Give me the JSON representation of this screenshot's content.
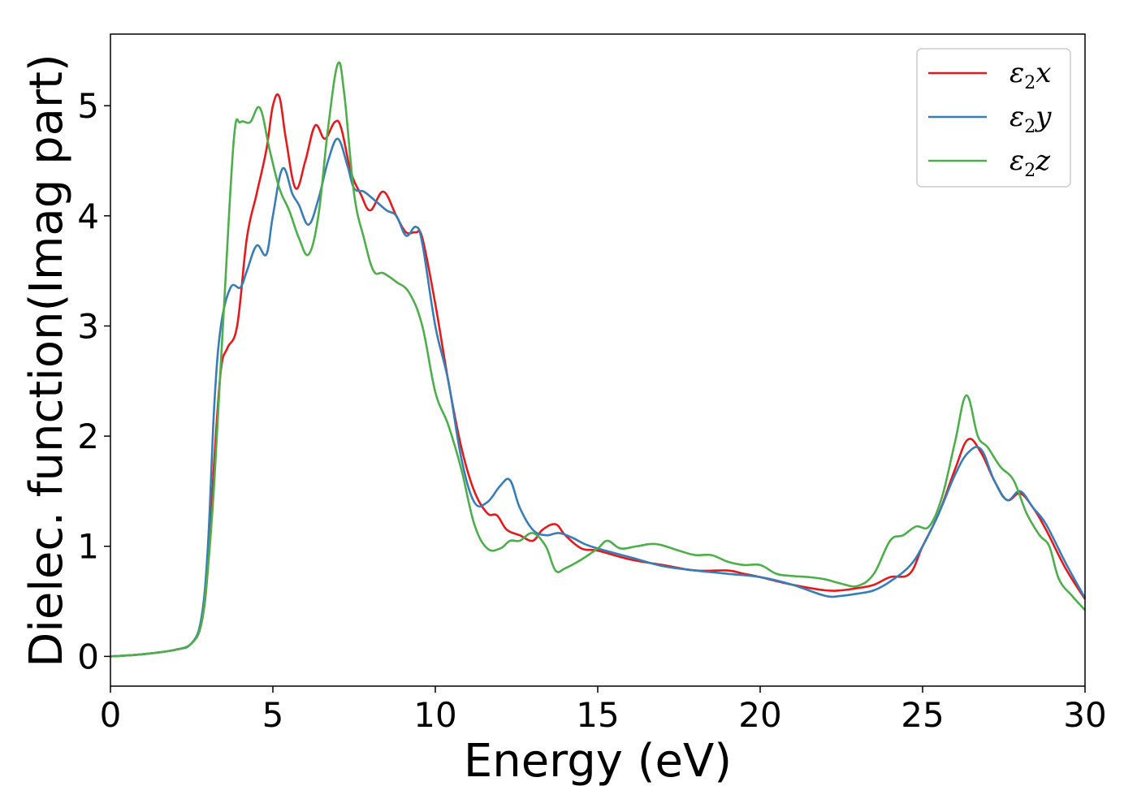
{
  "chart_data": {
    "type": "line",
    "title": "",
    "xlabel": "Energy (eV)",
    "ylabel": "Dielec. function(Imag part)",
    "xlim": [
      0,
      30
    ],
    "ylim": [
      -0.27,
      5.65
    ],
    "xticks": [
      "0",
      "5",
      "10",
      "15",
      "20",
      "25",
      "30"
    ],
    "yticks": [
      "0",
      "1",
      "2",
      "3",
      "4",
      "5"
    ],
    "grid": false,
    "legend_position": "top-right",
    "series": [
      {
        "name": "ε2x",
        "name_base": "ε",
        "name_sub": "2",
        "name_suffix": "x",
        "color": "#e41a1c",
        "points": [
          [
            0,
            0
          ],
          [
            1,
            0.02
          ],
          [
            2,
            0.06
          ],
          [
            2.5,
            0.12
          ],
          [
            2.8,
            0.3
          ],
          [
            3.0,
            0.8
          ],
          [
            3.2,
            1.8
          ],
          [
            3.4,
            2.6
          ],
          [
            3.6,
            2.8
          ],
          [
            3.9,
            3.0
          ],
          [
            4.2,
            3.8
          ],
          [
            4.5,
            4.2
          ],
          [
            4.8,
            4.6
          ],
          [
            5.0,
            5.0
          ],
          [
            5.2,
            5.08
          ],
          [
            5.4,
            4.7
          ],
          [
            5.7,
            4.25
          ],
          [
            6.0,
            4.5
          ],
          [
            6.3,
            4.82
          ],
          [
            6.6,
            4.7
          ],
          [
            6.9,
            4.85
          ],
          [
            7.1,
            4.8
          ],
          [
            7.4,
            4.4
          ],
          [
            7.7,
            4.2
          ],
          [
            8.0,
            4.05
          ],
          [
            8.4,
            4.22
          ],
          [
            8.8,
            4.0
          ],
          [
            9.1,
            3.85
          ],
          [
            9.4,
            3.85
          ],
          [
            9.6,
            3.8
          ],
          [
            10.0,
            3.2
          ],
          [
            10.4,
            2.5
          ],
          [
            10.8,
            1.9
          ],
          [
            11.2,
            1.5
          ],
          [
            11.6,
            1.3
          ],
          [
            11.9,
            1.28
          ],
          [
            12.2,
            1.15
          ],
          [
            12.6,
            1.1
          ],
          [
            13.0,
            1.05
          ],
          [
            13.3,
            1.15
          ],
          [
            13.7,
            1.2
          ],
          [
            14.0,
            1.1
          ],
          [
            14.5,
            0.98
          ],
          [
            15.0,
            0.96
          ],
          [
            16.0,
            0.88
          ],
          [
            17.0,
            0.83
          ],
          [
            18.0,
            0.78
          ],
          [
            19.0,
            0.78
          ],
          [
            19.5,
            0.75
          ],
          [
            20.0,
            0.72
          ],
          [
            21.0,
            0.65
          ],
          [
            22.0,
            0.6
          ],
          [
            22.5,
            0.6
          ],
          [
            23.0,
            0.62
          ],
          [
            23.5,
            0.65
          ],
          [
            24.0,
            0.72
          ],
          [
            24.6,
            0.75
          ],
          [
            25.0,
            1.0
          ],
          [
            25.5,
            1.3
          ],
          [
            26.0,
            1.7
          ],
          [
            26.4,
            1.97
          ],
          [
            26.8,
            1.85
          ],
          [
            27.2,
            1.6
          ],
          [
            27.6,
            1.42
          ],
          [
            28.0,
            1.48
          ],
          [
            28.4,
            1.35
          ],
          [
            28.8,
            1.15
          ],
          [
            29.4,
            0.8
          ],
          [
            30.0,
            0.52
          ]
        ]
      },
      {
        "name": "ε2y",
        "name_base": "ε",
        "name_sub": "2",
        "name_suffix": "y",
        "color": "#377eb8",
        "points": [
          [
            0,
            0
          ],
          [
            1,
            0.02
          ],
          [
            2,
            0.06
          ],
          [
            2.5,
            0.12
          ],
          [
            2.8,
            0.35
          ],
          [
            3.0,
            1.0
          ],
          [
            3.2,
            2.3
          ],
          [
            3.4,
            3.0
          ],
          [
            3.7,
            3.35
          ],
          [
            4.0,
            3.35
          ],
          [
            4.2,
            3.5
          ],
          [
            4.5,
            3.73
          ],
          [
            4.8,
            3.65
          ],
          [
            5.0,
            4.0
          ],
          [
            5.3,
            4.43
          ],
          [
            5.6,
            4.2
          ],
          [
            5.8,
            4.1
          ],
          [
            6.1,
            3.92
          ],
          [
            6.4,
            4.15
          ],
          [
            6.7,
            4.5
          ],
          [
            7.0,
            4.7
          ],
          [
            7.3,
            4.45
          ],
          [
            7.5,
            4.25
          ],
          [
            7.8,
            4.22
          ],
          [
            8.1,
            4.15
          ],
          [
            8.5,
            4.05
          ],
          [
            8.8,
            4.0
          ],
          [
            9.1,
            3.82
          ],
          [
            9.4,
            3.9
          ],
          [
            9.6,
            3.75
          ],
          [
            10.0,
            3.0
          ],
          [
            10.4,
            2.5
          ],
          [
            10.8,
            1.8
          ],
          [
            11.2,
            1.4
          ],
          [
            11.6,
            1.4
          ],
          [
            12.0,
            1.55
          ],
          [
            12.3,
            1.6
          ],
          [
            12.6,
            1.35
          ],
          [
            13.0,
            1.15
          ],
          [
            13.4,
            1.1
          ],
          [
            13.8,
            1.12
          ],
          [
            14.2,
            1.08
          ],
          [
            14.6,
            1.02
          ],
          [
            15.0,
            0.98
          ],
          [
            16.0,
            0.9
          ],
          [
            17.0,
            0.82
          ],
          [
            18.0,
            0.78
          ],
          [
            19.0,
            0.75
          ],
          [
            20.0,
            0.72
          ],
          [
            21.0,
            0.65
          ],
          [
            22.0,
            0.55
          ],
          [
            22.5,
            0.55
          ],
          [
            23.0,
            0.57
          ],
          [
            23.5,
            0.6
          ],
          [
            24.0,
            0.68
          ],
          [
            24.6,
            0.82
          ],
          [
            25.0,
            1.0
          ],
          [
            25.5,
            1.3
          ],
          [
            26.0,
            1.65
          ],
          [
            26.4,
            1.85
          ],
          [
            26.8,
            1.88
          ],
          [
            27.2,
            1.6
          ],
          [
            27.6,
            1.42
          ],
          [
            28.0,
            1.5
          ],
          [
            28.4,
            1.35
          ],
          [
            28.8,
            1.2
          ],
          [
            29.4,
            0.85
          ],
          [
            30.0,
            0.53
          ]
        ]
      },
      {
        "name": "ε2z",
        "name_base": "ε",
        "name_sub": "2",
        "name_suffix": "z",
        "color": "#4daf4a",
        "points": [
          [
            0,
            0
          ],
          [
            1,
            0.02
          ],
          [
            2,
            0.06
          ],
          [
            2.5,
            0.12
          ],
          [
            2.8,
            0.3
          ],
          [
            3.0,
            0.8
          ],
          [
            3.2,
            1.6
          ],
          [
            3.5,
            3.2
          ],
          [
            3.8,
            4.7
          ],
          [
            4.0,
            4.85
          ],
          [
            4.3,
            4.85
          ],
          [
            4.6,
            4.98
          ],
          [
            4.9,
            4.6
          ],
          [
            5.2,
            4.25
          ],
          [
            5.5,
            4.05
          ],
          [
            5.8,
            3.8
          ],
          [
            6.1,
            3.65
          ],
          [
            6.4,
            4.0
          ],
          [
            6.7,
            4.8
          ],
          [
            7.0,
            5.38
          ],
          [
            7.2,
            5.1
          ],
          [
            7.5,
            4.2
          ],
          [
            7.8,
            3.8
          ],
          [
            8.1,
            3.5
          ],
          [
            8.4,
            3.48
          ],
          [
            8.8,
            3.4
          ],
          [
            9.2,
            3.3
          ],
          [
            9.6,
            3.0
          ],
          [
            10.0,
            2.4
          ],
          [
            10.4,
            2.1
          ],
          [
            10.8,
            1.7
          ],
          [
            11.2,
            1.2
          ],
          [
            11.6,
            0.98
          ],
          [
            12.0,
            0.98
          ],
          [
            12.3,
            1.05
          ],
          [
            12.6,
            1.05
          ],
          [
            13.0,
            1.12
          ],
          [
            13.4,
            1.0
          ],
          [
            13.7,
            0.78
          ],
          [
            14.0,
            0.8
          ],
          [
            14.5,
            0.88
          ],
          [
            15.0,
            0.98
          ],
          [
            15.3,
            1.05
          ],
          [
            15.7,
            0.98
          ],
          [
            16.2,
            1.0
          ],
          [
            16.8,
            1.02
          ],
          [
            17.5,
            0.96
          ],
          [
            18.0,
            0.92
          ],
          [
            18.5,
            0.92
          ],
          [
            19.0,
            0.86
          ],
          [
            19.5,
            0.83
          ],
          [
            20.0,
            0.83
          ],
          [
            20.5,
            0.75
          ],
          [
            21.0,
            0.73
          ],
          [
            21.5,
            0.72
          ],
          [
            22.0,
            0.7
          ],
          [
            22.5,
            0.66
          ],
          [
            23.0,
            0.64
          ],
          [
            23.5,
            0.75
          ],
          [
            24.0,
            1.05
          ],
          [
            24.4,
            1.1
          ],
          [
            24.8,
            1.18
          ],
          [
            25.2,
            1.18
          ],
          [
            25.6,
            1.45
          ],
          [
            26.0,
            1.95
          ],
          [
            26.35,
            2.37
          ],
          [
            26.7,
            2.0
          ],
          [
            27.0,
            1.9
          ],
          [
            27.4,
            1.72
          ],
          [
            27.8,
            1.6
          ],
          [
            28.2,
            1.3
          ],
          [
            28.6,
            1.1
          ],
          [
            28.9,
            1.0
          ],
          [
            29.2,
            0.7
          ],
          [
            29.6,
            0.55
          ],
          [
            30.0,
            0.42
          ]
        ]
      }
    ]
  }
}
